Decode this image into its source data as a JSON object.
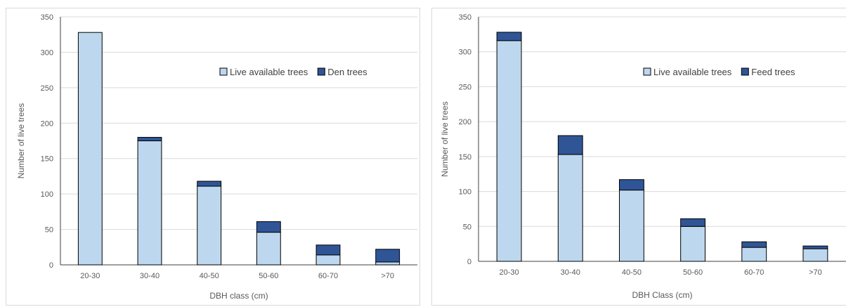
{
  "chart_data": [
    {
      "type": "bar",
      "stacked": true,
      "title": "",
      "xlabel": "DBH class (cm)",
      "ylabel": "Number of live trees",
      "ylim": [
        0,
        350
      ],
      "yticks": [
        0,
        50,
        100,
        150,
        200,
        250,
        300,
        350
      ],
      "grid": true,
      "legend_position": "top-right",
      "categories": [
        "20-30",
        "30-40",
        "40-50",
        "50-60",
        "60-70",
        ">70"
      ],
      "series": [
        {
          "name": "Live available trees",
          "color": "#bdd7ee",
          "values": [
            328,
            175,
            111,
            46,
            14,
            4
          ]
        },
        {
          "name": "Den trees",
          "color": "#2f5597",
          "values": [
            0,
            5,
            7,
            15,
            14,
            18
          ]
        }
      ]
    },
    {
      "type": "bar",
      "stacked": true,
      "title": "",
      "xlabel": "DBH Class (cm)",
      "ylabel": "Number of live trees",
      "ylim": [
        0,
        350
      ],
      "yticks": [
        0,
        50,
        100,
        150,
        200,
        250,
        300,
        350
      ],
      "grid": true,
      "legend_position": "top-right",
      "categories": [
        "20-30",
        "30-40",
        "40-50",
        "50-60",
        "60-70",
        ">70"
      ],
      "series": [
        {
          "name": "Live available trees",
          "color": "#bdd7ee",
          "values": [
            316,
            153,
            102,
            50,
            20,
            18
          ]
        },
        {
          "name": "Feed trees",
          "color": "#2f5597",
          "values": [
            12,
            27,
            15,
            11,
            8,
            4
          ]
        }
      ]
    }
  ]
}
